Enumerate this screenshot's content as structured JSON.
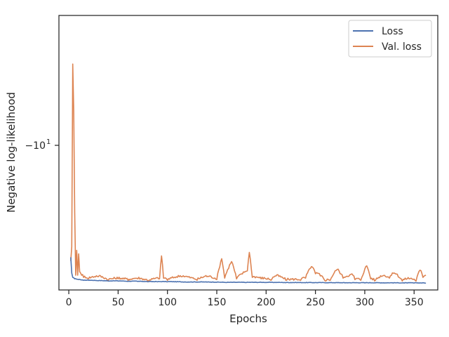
{
  "chart_data": {
    "type": "line",
    "title": "",
    "xlabel": "Epochs",
    "ylabel": "Negative log-likelihood",
    "xlim": [
      -10,
      374
    ],
    "x_ticks": [
      0,
      50,
      100,
      150,
      200,
      250,
      300,
      350
    ],
    "x_tick_labels": [
      "0",
      "50",
      "100",
      "150",
      "200",
      "250",
      "300",
      "350"
    ],
    "y_scale": "symlog (negative log scale)",
    "y_ticks": [
      -10
    ],
    "y_tick_labels": [
      "−10"
    ],
    "y_tick_exponent": "1",
    "grid": false,
    "legend_position": "top-right",
    "series": [
      {
        "name": "Loss",
        "color": "#4c72b0",
        "points": [
          [
            2,
            -8.25
          ],
          [
            3,
            -8.03
          ],
          [
            4,
            -7.97
          ],
          [
            6,
            -7.95
          ],
          [
            10,
            -7.94
          ],
          [
            15,
            -7.93
          ],
          [
            20,
            -7.93
          ],
          [
            30,
            -7.925
          ],
          [
            40,
            -7.92
          ],
          [
            50,
            -7.92
          ],
          [
            60,
            -7.915
          ],
          [
            70,
            -7.915
          ],
          [
            80,
            -7.91
          ],
          [
            90,
            -7.91
          ],
          [
            100,
            -7.91
          ],
          [
            120,
            -7.905
          ],
          [
            140,
            -7.905
          ],
          [
            160,
            -7.9
          ],
          [
            180,
            -7.9
          ],
          [
            200,
            -7.9
          ],
          [
            220,
            -7.898
          ],
          [
            240,
            -7.897
          ],
          [
            260,
            -7.896
          ],
          [
            280,
            -7.895
          ],
          [
            300,
            -7.895
          ],
          [
            320,
            -7.894
          ],
          [
            340,
            -7.893
          ],
          [
            350,
            -7.893
          ],
          [
            362,
            -7.892
          ]
        ],
        "jitter": 0.006
      },
      {
        "name": "Val. loss",
        "color": "#dd8452",
        "points": [
          [
            2,
            -8.2
          ],
          [
            3,
            -8.4
          ],
          [
            4,
            -11.5
          ],
          [
            5,
            -10.6
          ],
          [
            6,
            -8.9
          ],
          [
            7,
            -8.0
          ],
          [
            8,
            -8.35
          ],
          [
            9,
            -8.0
          ],
          [
            10,
            -8.3
          ],
          [
            11,
            -8.05
          ],
          [
            13,
            -8.0
          ],
          [
            15,
            -7.97
          ],
          [
            20,
            -7.95
          ],
          [
            30,
            -7.98
          ],
          [
            40,
            -7.93
          ],
          [
            50,
            -7.95
          ],
          [
            60,
            -7.93
          ],
          [
            70,
            -7.95
          ],
          [
            80,
            -7.92
          ],
          [
            92,
            -7.95
          ],
          [
            94,
            -8.27
          ],
          [
            96,
            -7.96
          ],
          [
            100,
            -7.93
          ],
          [
            110,
            -7.97
          ],
          [
            115,
            -7.98
          ],
          [
            130,
            -7.93
          ],
          [
            140,
            -7.98
          ],
          [
            150,
            -7.94
          ],
          [
            155,
            -8.23
          ],
          [
            158,
            -7.96
          ],
          [
            165,
            -8.19
          ],
          [
            170,
            -7.95
          ],
          [
            181,
            -8.06
          ],
          [
            183,
            -8.32
          ],
          [
            186,
            -7.97
          ],
          [
            195,
            -7.95
          ],
          [
            205,
            -7.93
          ],
          [
            210,
            -7.99
          ],
          [
            220,
            -7.93
          ],
          [
            235,
            -7.93
          ],
          [
            240,
            -7.96
          ],
          [
            246,
            -8.12
          ],
          [
            250,
            -8.02
          ],
          [
            255,
            -7.99
          ],
          [
            260,
            -7.92
          ],
          [
            265,
            -7.93
          ],
          [
            272,
            -8.08
          ],
          [
            278,
            -7.96
          ],
          [
            288,
            -8.0
          ],
          [
            290,
            -7.94
          ],
          [
            296,
            -7.93
          ],
          [
            302,
            -8.13
          ],
          [
            306,
            -7.95
          ],
          [
            310,
            -7.92
          ],
          [
            318,
            -7.99
          ],
          [
            325,
            -7.96
          ],
          [
            330,
            -8.03
          ],
          [
            338,
            -7.92
          ],
          [
            345,
            -7.95
          ],
          [
            352,
            -7.92
          ],
          [
            356,
            -8.07
          ],
          [
            359,
            -7.97
          ],
          [
            362,
            -8.0
          ]
        ],
        "jitter": 0.03
      }
    ]
  }
}
